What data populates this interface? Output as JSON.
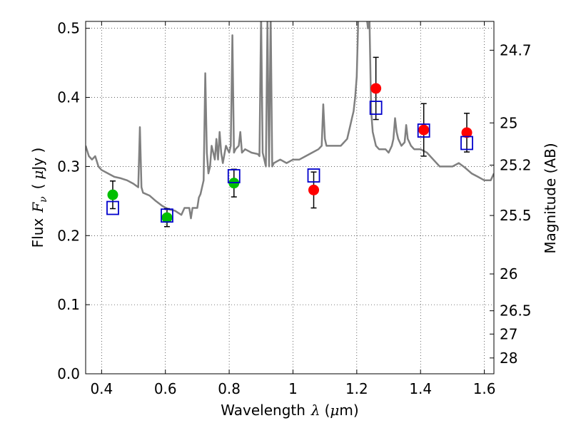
{
  "chart_data": {
    "type": "scatter",
    "xlabel_text": "Wavelength",
    "xlabel_symbol": "λ",
    "xlabel_unit_open": "(",
    "xlabel_unit_mu": "μ",
    "xlabel_unit_rest": "m)",
    "ylabel_text": "Flux",
    "ylabel_symbol": "F",
    "ylabel_sub": "ν",
    "ylabel_unit_open": "(",
    "ylabel_unit_mu": "μ",
    "ylabel_unit_rest": "Jy )",
    "y2label": "Magnitude (AB)",
    "xlim": [
      0.35,
      1.63
    ],
    "ylim": [
      0.0,
      0.51
    ],
    "grid": true,
    "x_ticks": [
      {
        "value": 0.4,
        "label": "0.4"
      },
      {
        "value": 0.6,
        "label": "0.6"
      },
      {
        "value": 0.8,
        "label": "0.8"
      },
      {
        "value": 1.0,
        "label": "1"
      },
      {
        "value": 1.2,
        "label": "1.2"
      },
      {
        "value": 1.4,
        "label": "1.4"
      },
      {
        "value": 1.6,
        "label": "1.6"
      }
    ],
    "y_ticks": [
      {
        "value": 0.0,
        "label": "0.0"
      },
      {
        "value": 0.1,
        "label": "0.1"
      },
      {
        "value": 0.2,
        "label": "0.2"
      },
      {
        "value": 0.3,
        "label": "0.3"
      },
      {
        "value": 0.4,
        "label": "0.4"
      },
      {
        "value": 0.5,
        "label": "0.5"
      }
    ],
    "y2_ticks": [
      {
        "flux": 0.4683,
        "label": "24.7"
      },
      {
        "flux": 0.3631,
        "label": "25"
      },
      {
        "flux": 0.302,
        "label": "25.2"
      },
      {
        "flux": 0.2291,
        "label": "25.5"
      },
      {
        "flux": 0.1445,
        "label": "26"
      },
      {
        "flux": 0.0912,
        "label": "26.5"
      },
      {
        "flux": 0.0575,
        "label": "27"
      },
      {
        "flux": 0.0229,
        "label": "28"
      }
    ],
    "model_spectrum": {
      "color": "#808080",
      "x": [
        0.35,
        0.36,
        0.37,
        0.38,
        0.39,
        0.4,
        0.42,
        0.44,
        0.46,
        0.48,
        0.5,
        0.515,
        0.52,
        0.525,
        0.53,
        0.55,
        0.57,
        0.59,
        0.61,
        0.63,
        0.65,
        0.66,
        0.675,
        0.68,
        0.685,
        0.69,
        0.7,
        0.705,
        0.71,
        0.715,
        0.72,
        0.725,
        0.73,
        0.735,
        0.74,
        0.745,
        0.75,
        0.755,
        0.76,
        0.765,
        0.77,
        0.775,
        0.78,
        0.79,
        0.8,
        0.805,
        0.81,
        0.815,
        0.82,
        0.83,
        0.835,
        0.84,
        0.85,
        0.87,
        0.89,
        0.895,
        0.9,
        0.905,
        0.91,
        0.915,
        0.92,
        0.925,
        0.93,
        0.935,
        0.94,
        0.96,
        0.98,
        1.0,
        1.02,
        1.04,
        1.06,
        1.08,
        1.09,
        1.095,
        1.1,
        1.105,
        1.11,
        1.13,
        1.15,
        1.17,
        1.18,
        1.185,
        1.19,
        1.195,
        1.2,
        1.205,
        1.21,
        1.22,
        1.23,
        1.235,
        1.24,
        1.245,
        1.25,
        1.26,
        1.27,
        1.28,
        1.29,
        1.3,
        1.31,
        1.315,
        1.32,
        1.325,
        1.33,
        1.34,
        1.35,
        1.355,
        1.36,
        1.365,
        1.37,
        1.38,
        1.4,
        1.42,
        1.44,
        1.46,
        1.48,
        1.5,
        1.52,
        1.54,
        1.56,
        1.58,
        1.6,
        1.62,
        1.63
      ],
      "y": [
        0.33,
        0.315,
        0.31,
        0.315,
        0.3,
        0.295,
        0.29,
        0.285,
        0.283,
        0.28,
        0.275,
        0.27,
        0.357,
        0.27,
        0.262,
        0.258,
        0.25,
        0.243,
        0.238,
        0.236,
        0.23,
        0.24,
        0.24,
        0.225,
        0.24,
        0.24,
        0.24,
        0.255,
        0.26,
        0.27,
        0.28,
        0.435,
        0.32,
        0.29,
        0.3,
        0.33,
        0.32,
        0.31,
        0.34,
        0.31,
        0.35,
        0.32,
        0.305,
        0.33,
        0.32,
        0.33,
        0.49,
        0.32,
        0.325,
        0.33,
        0.35,
        0.32,
        0.325,
        0.32,
        0.318,
        0.315,
        0.52,
        0.32,
        0.31,
        0.3,
        0.51,
        0.3,
        0.52,
        0.3,
        0.305,
        0.31,
        0.305,
        0.31,
        0.31,
        0.315,
        0.32,
        0.325,
        0.33,
        0.39,
        0.34,
        0.33,
        0.33,
        0.33,
        0.33,
        0.34,
        0.36,
        0.37,
        0.38,
        0.4,
        0.43,
        0.52,
        0.52,
        0.52,
        0.52,
        0.5,
        0.51,
        0.38,
        0.35,
        0.33,
        0.325,
        0.325,
        0.325,
        0.32,
        0.33,
        0.34,
        0.37,
        0.35,
        0.34,
        0.33,
        0.335,
        0.36,
        0.34,
        0.335,
        0.33,
        0.325,
        0.325,
        0.32,
        0.31,
        0.3,
        0.3,
        0.3,
        0.305,
        0.298,
        0.29,
        0.285,
        0.28,
        0.28,
        0.29
      ]
    },
    "series": [
      {
        "name": "",
        "marker": "circle",
        "color": "#00bf00",
        "x": [
          0.435,
          0.605,
          0.815
        ],
        "y": [
          0.259,
          0.226,
          0.276
        ],
        "err": [
          0.02,
          0.013,
          0.02
        ]
      },
      {
        "name": "",
        "marker": "circle",
        "color": "#ff0000",
        "x": [
          1.065,
          1.26,
          1.41,
          1.545
        ],
        "y": [
          0.266,
          0.413,
          0.353,
          0.349
        ],
        "err": [
          0.026,
          0.045,
          0.038,
          0.028
        ]
      },
      {
        "name": "",
        "marker": "open-square",
        "color": "#0000cc",
        "x": [
          0.435,
          0.605,
          0.815,
          1.065,
          1.26,
          1.41,
          1.545
        ],
        "y": [
          0.24,
          0.229,
          0.286,
          0.287,
          0.385,
          0.352,
          0.334
        ]
      }
    ]
  }
}
